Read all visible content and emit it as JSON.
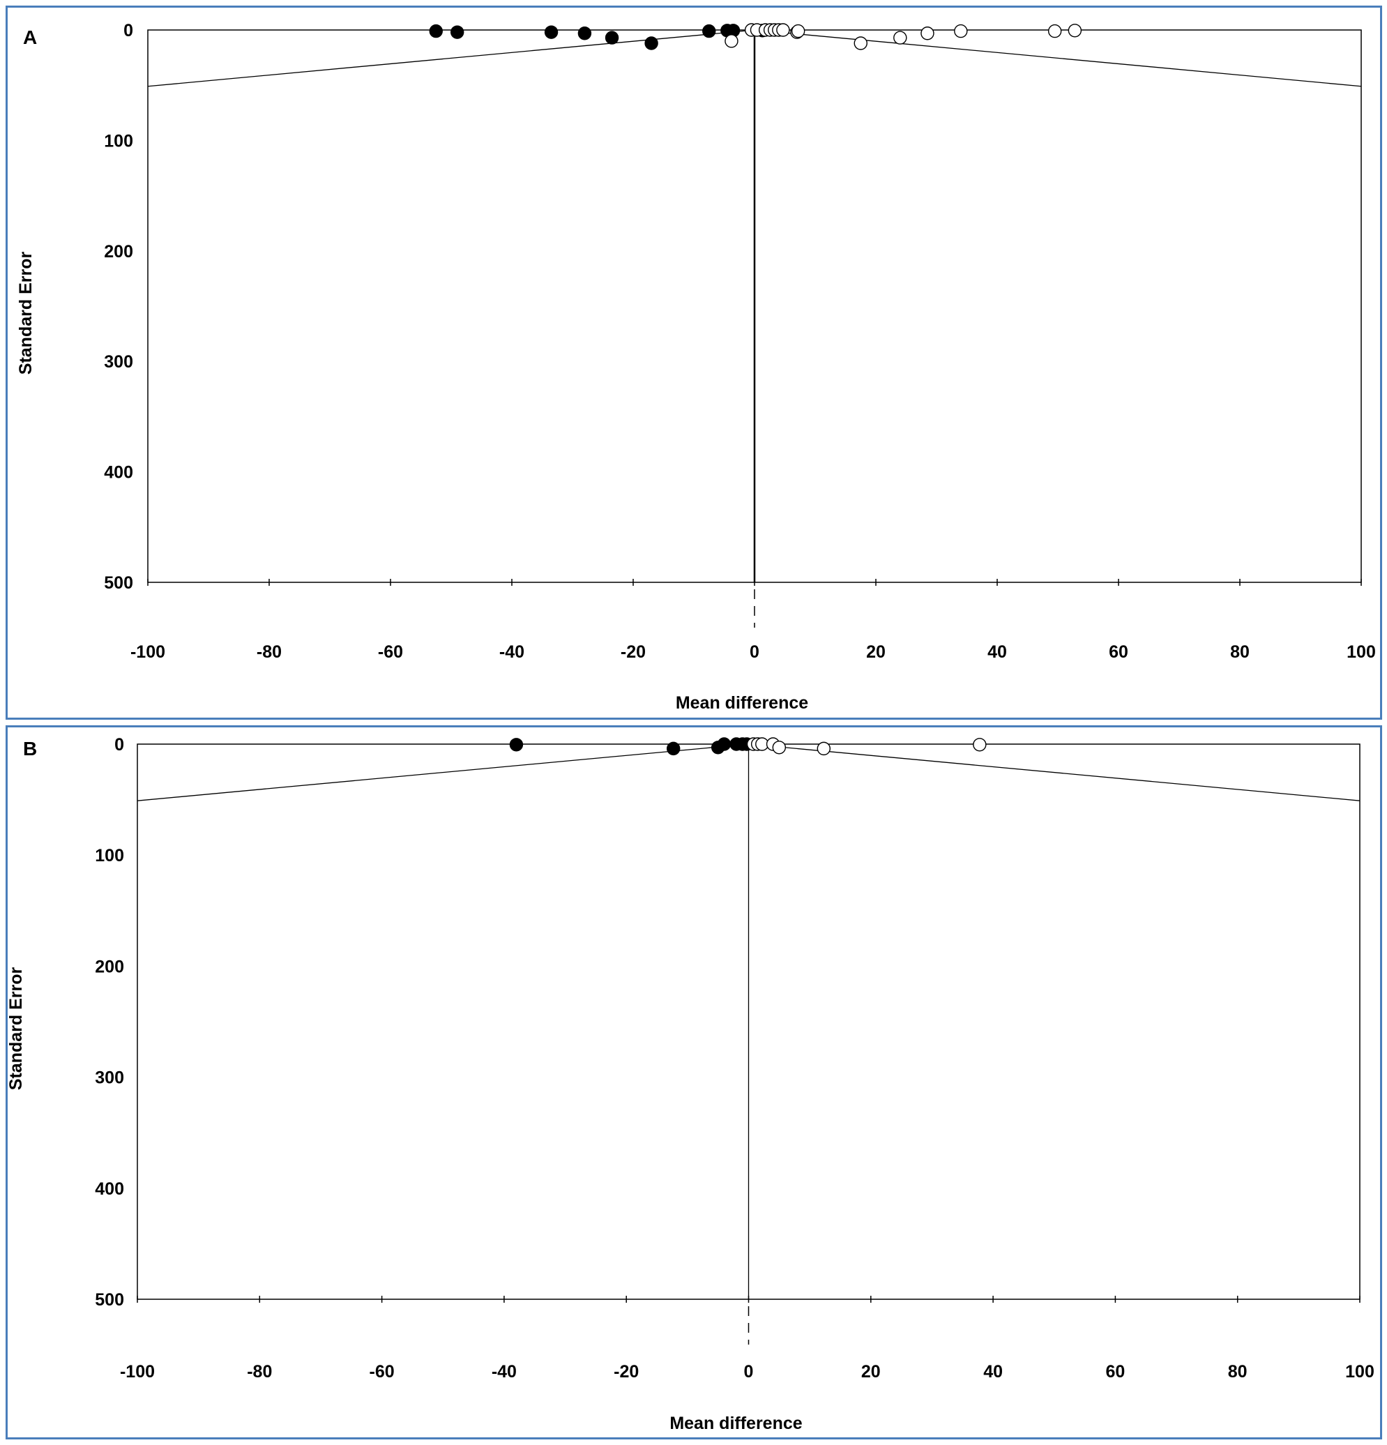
{
  "chart_data": [
    {
      "type": "scatter",
      "panel_label": "A",
      "xlabel": "Mean difference",
      "ylabel": "Standard Error",
      "xlim": [
        -100,
        100
      ],
      "ylim": [
        0,
        500
      ],
      "y_inverted": true,
      "x_ticks": [
        "-100",
        "-80",
        "-60",
        "-40",
        "-20",
        "0",
        "20",
        "40",
        "60",
        "80",
        "100"
      ],
      "y_ticks": [
        "0",
        "100",
        "200",
        "300",
        "400",
        "500"
      ],
      "funnel": {
        "center": 0,
        "apex_se": 0,
        "edge_se": 51
      },
      "series": [
        {
          "marker": "filled",
          "points": [
            [
              -52.5,
              1
            ],
            [
              -49,
              2
            ],
            [
              -33.5,
              2
            ],
            [
              -28,
              3
            ],
            [
              -23.5,
              7
            ],
            [
              -17,
              12
            ],
            [
              -7.5,
              1
            ],
            [
              -4.5,
              0.5
            ],
            [
              -3.5,
              0.5
            ],
            [
              1.3,
              0.5
            ]
          ]
        },
        {
          "marker": "open",
          "points": [
            [
              -3.8,
              10
            ],
            [
              -0.5,
              0
            ],
            [
              0.4,
              0
            ],
            [
              1.8,
              0
            ],
            [
              2.6,
              0
            ],
            [
              3.3,
              0
            ],
            [
              4.0,
              0
            ],
            [
              4.7,
              0
            ],
            [
              7,
              2
            ],
            [
              7.2,
              1
            ],
            [
              17.5,
              12
            ],
            [
              24,
              7
            ],
            [
              28.5,
              3
            ],
            [
              34,
              1
            ],
            [
              49.5,
              1
            ],
            [
              52.8,
              0.5
            ]
          ]
        }
      ]
    },
    {
      "type": "scatter",
      "panel_label": "B",
      "xlabel": "Mean difference",
      "ylabel": "Standard Error",
      "xlim": [
        -100,
        100
      ],
      "ylim": [
        0,
        500
      ],
      "y_inverted": true,
      "x_ticks": [
        "-100",
        "-80",
        "-60",
        "-40",
        "-20",
        "0",
        "20",
        "40",
        "60",
        "80",
        "100"
      ],
      "y_ticks": [
        "0",
        "100",
        "200",
        "300",
        "400",
        "500"
      ],
      "funnel": {
        "center": 0,
        "apex_se": 0,
        "edge_se": 51
      },
      "series": [
        {
          "marker": "filled",
          "points": [
            [
              -38,
              0.5
            ],
            [
              -12.3,
              4
            ],
            [
              -5,
              3
            ],
            [
              -4,
              0
            ],
            [
              -2,
              0
            ],
            [
              -1,
              0
            ],
            [
              -0.3,
              0
            ]
          ]
        },
        {
          "marker": "open",
          "points": [
            [
              0.8,
              0
            ],
            [
              1.5,
              0
            ],
            [
              2.2,
              0
            ],
            [
              4.0,
              0
            ],
            [
              5,
              3
            ],
            [
              12.3,
              4
            ],
            [
              37.8,
              0.5
            ]
          ]
        }
      ]
    }
  ]
}
